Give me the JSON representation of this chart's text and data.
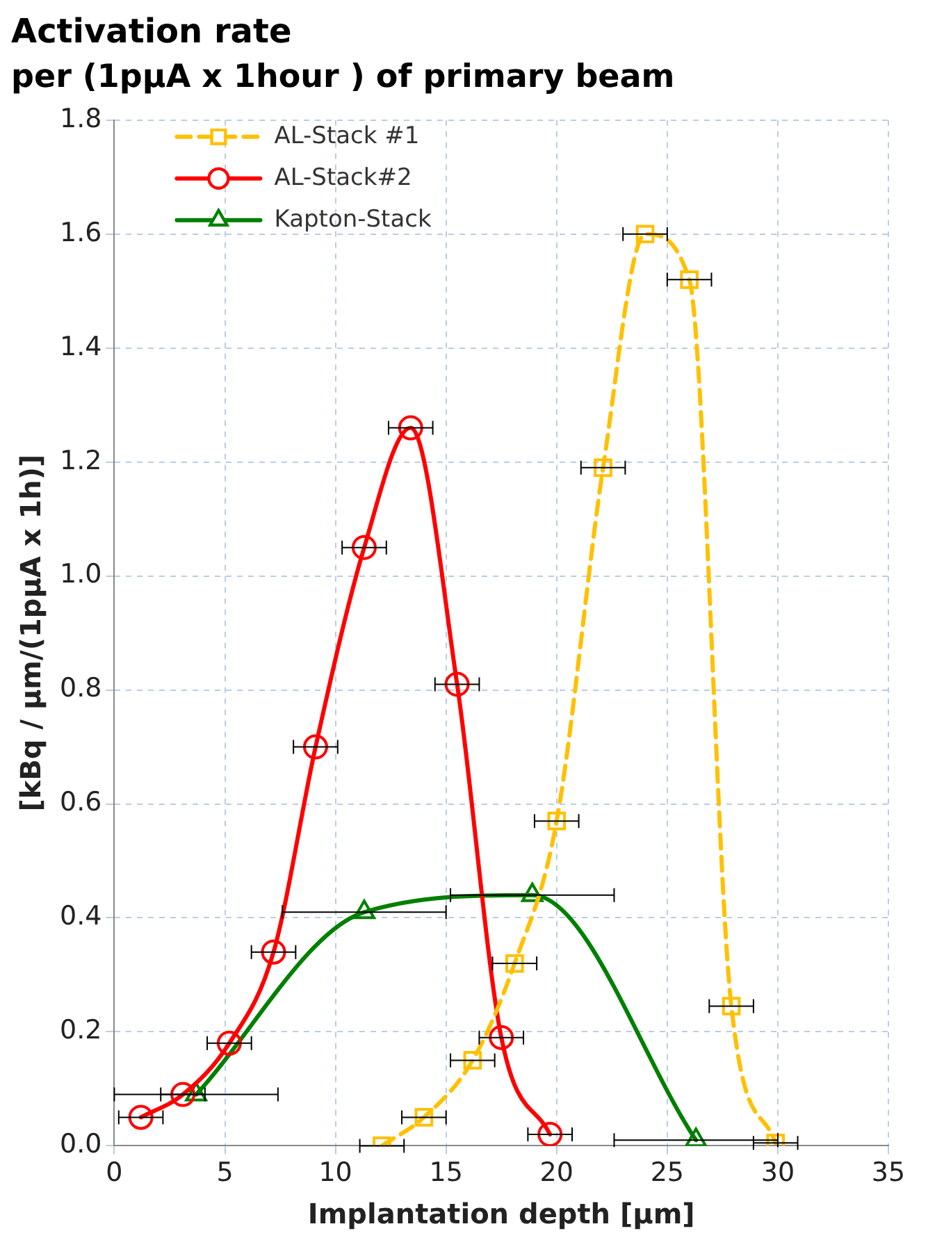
{
  "chart_data": {
    "type": "line",
    "title": "Activation rate",
    "subtitle": "per (1pμA x 1hour ) of primary beam",
    "xlabel": "Implantation depth [μm]",
    "ylabel": "[kBq / μm/(1pμA x 1h)]",
    "xlim": [
      0,
      35
    ],
    "xticks": [
      0,
      5,
      10,
      15,
      20,
      25,
      30,
      35
    ],
    "ylim": [
      0,
      1.8
    ],
    "yticks": [
      {
        "value": 0,
        "label": "0.0"
      },
      {
        "value": 0.2,
        "label": "0.2"
      },
      {
        "value": 0.4,
        "label": "0.4"
      },
      {
        "value": 0.6,
        "label": "0.6"
      },
      {
        "value": 0.8,
        "label": "0.8"
      },
      {
        "value": 1.0,
        "label": "1.0"
      },
      {
        "value": 1.2,
        "label": "1.2"
      },
      {
        "value": 1.4,
        "label": "1.4"
      },
      {
        "value": 1.6,
        "label": "1.6"
      },
      {
        "value": 1.8,
        "label": "1.8"
      }
    ],
    "grid": true,
    "legend": "top left",
    "series": [
      {
        "name": "AL-Stack #1",
        "color": "#ffc000",
        "marker": "square",
        "line_style": "dashed",
        "x": [
          12.1,
          14.0,
          16.2,
          18.1,
          20.0,
          22.1,
          24.0,
          26.0,
          27.9,
          29.9
        ],
        "values": [
          0.0,
          0.05,
          0.15,
          0.32,
          0.57,
          1.19,
          1.6,
          1.52,
          0.245,
          0.005
        ],
        "xerrors": [
          1,
          1,
          1,
          1,
          1,
          1,
          1,
          1,
          1,
          1
        ]
      },
      {
        "name": "AL-Stack#2",
        "color": "#ff0000",
        "marker": "circle",
        "line_style": "solid",
        "x": [
          1.2,
          3.1,
          5.2,
          7.2,
          9.1,
          11.3,
          13.4,
          15.5,
          17.5,
          19.7
        ],
        "values": [
          0.05,
          0.09,
          0.18,
          0.34,
          0.7,
          1.05,
          1.26,
          0.81,
          0.19,
          0.02
        ],
        "xerrors": [
          1,
          1,
          1,
          1,
          1,
          1,
          1,
          1,
          1,
          1
        ]
      },
      {
        "name": "Kapton-Stack",
        "color": "#008000",
        "marker": "triangle",
        "line_style": "solid",
        "x": [
          3.7,
          11.3,
          18.9,
          26.3
        ],
        "values": [
          0.09,
          0.41,
          0.44,
          0.01
        ],
        "xerrors": [
          3.7,
          3.7,
          3.7,
          3.7
        ]
      }
    ]
  }
}
